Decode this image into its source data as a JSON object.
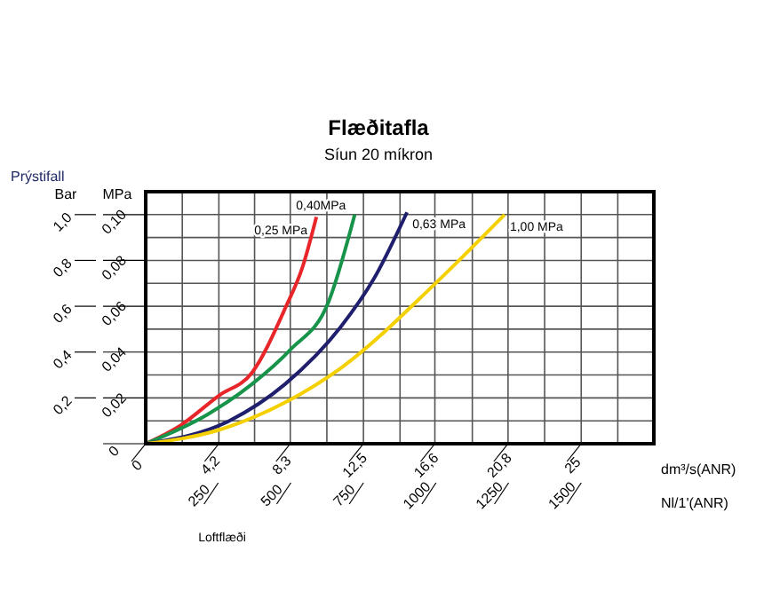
{
  "chart_data": {
    "type": "line",
    "title": "Flæðitafla",
    "subtitle": "Síun 20 míkron",
    "ylabel": "MPa",
    "y2label": "Bar",
    "xlabel": "Loftflæði",
    "x2label": "Nl/1'(ANR)",
    "annotations": [
      "Prýstifall",
      "dm³/s(ANR)"
    ],
    "xlim": [
      0,
      29.17
    ],
    "ylim": [
      0,
      0.11
    ],
    "y2lim": [
      0,
      1.1
    ],
    "x2lim": [
      0,
      1750
    ],
    "xticks": [
      0,
      {
        "value": 2.1,
        "label": null
      },
      {
        "value": 4.2,
        "label": "4,2"
      },
      {
        "value": 6.25,
        "label": null
      },
      {
        "value": 8.3,
        "label": "8,3"
      },
      {
        "value": 10.4,
        "label": null
      },
      {
        "value": 12.5,
        "label": "12,5"
      },
      {
        "value": 14.6,
        "label": null
      },
      {
        "value": 16.6,
        "label": "16,6"
      },
      {
        "value": 18.75,
        "label": null
      },
      {
        "value": 20.8,
        "label": "20,8"
      },
      {
        "value": 22.9,
        "label": null
      },
      {
        "value": 25,
        "label": "25"
      },
      {
        "value": 27.1,
        "label": null
      }
    ],
    "x2ticks": [
      250,
      500,
      750,
      1000,
      1250,
      1500
    ],
    "yticks": [
      0,
      {
        "value": 0.01,
        "label": null
      },
      {
        "value": 0.02,
        "label": "0,02"
      },
      {
        "value": 0.03,
        "label": null
      },
      {
        "value": 0.04,
        "label": "0,04"
      },
      {
        "value": 0.05,
        "label": null
      },
      {
        "value": 0.06,
        "label": "0,06"
      },
      {
        "value": 0.07,
        "label": null
      },
      {
        "value": 0.08,
        "label": "0,08"
      },
      {
        "value": 0.09,
        "label": null
      },
      {
        "value": 0.1,
        "label": "0,10"
      }
    ],
    "y2ticks": [
      {
        "value": 0.2,
        "label": "0,2"
      },
      {
        "value": 0.4,
        "label": "0,4"
      },
      {
        "value": 0.6,
        "label": "0,6"
      },
      {
        "value": 0.8,
        "label": "0,8"
      },
      {
        "value": 1.0,
        "label": "1,0"
      }
    ],
    "grid": true,
    "line_style": "solid",
    "series": [
      {
        "name": "0,25 MPa",
        "color": "#e8262a",
        "x": [
          0,
          2,
          4.2,
          6.1,
          8,
          9,
          9.8
        ],
        "values": [
          0,
          0.008,
          0.021,
          0.031,
          0.059,
          0.077,
          0.099
        ]
      },
      {
        "name": "0,40MPa",
        "color": "#17934a",
        "x": [
          0,
          3.6,
          6.1,
          8.3,
          10.5,
          12
        ],
        "values": [
          0,
          0.013,
          0.026,
          0.041,
          0.062,
          0.1
        ]
      },
      {
        "name": "0,63 MPa",
        "color": "#1f1f6e",
        "x": [
          0,
          4.8,
          8,
          11.2,
          13.1,
          15
        ],
        "values": [
          0,
          0.01,
          0.026,
          0.051,
          0.072,
          0.101
        ]
      },
      {
        "name": "1,00 MPa",
        "color": "#f5d000",
        "x": [
          0,
          4.2,
          8,
          11.2,
          16.5,
          20.6
        ],
        "values": [
          0,
          0.006,
          0.018,
          0.033,
          0.069,
          0.1
        ]
      }
    ]
  }
}
